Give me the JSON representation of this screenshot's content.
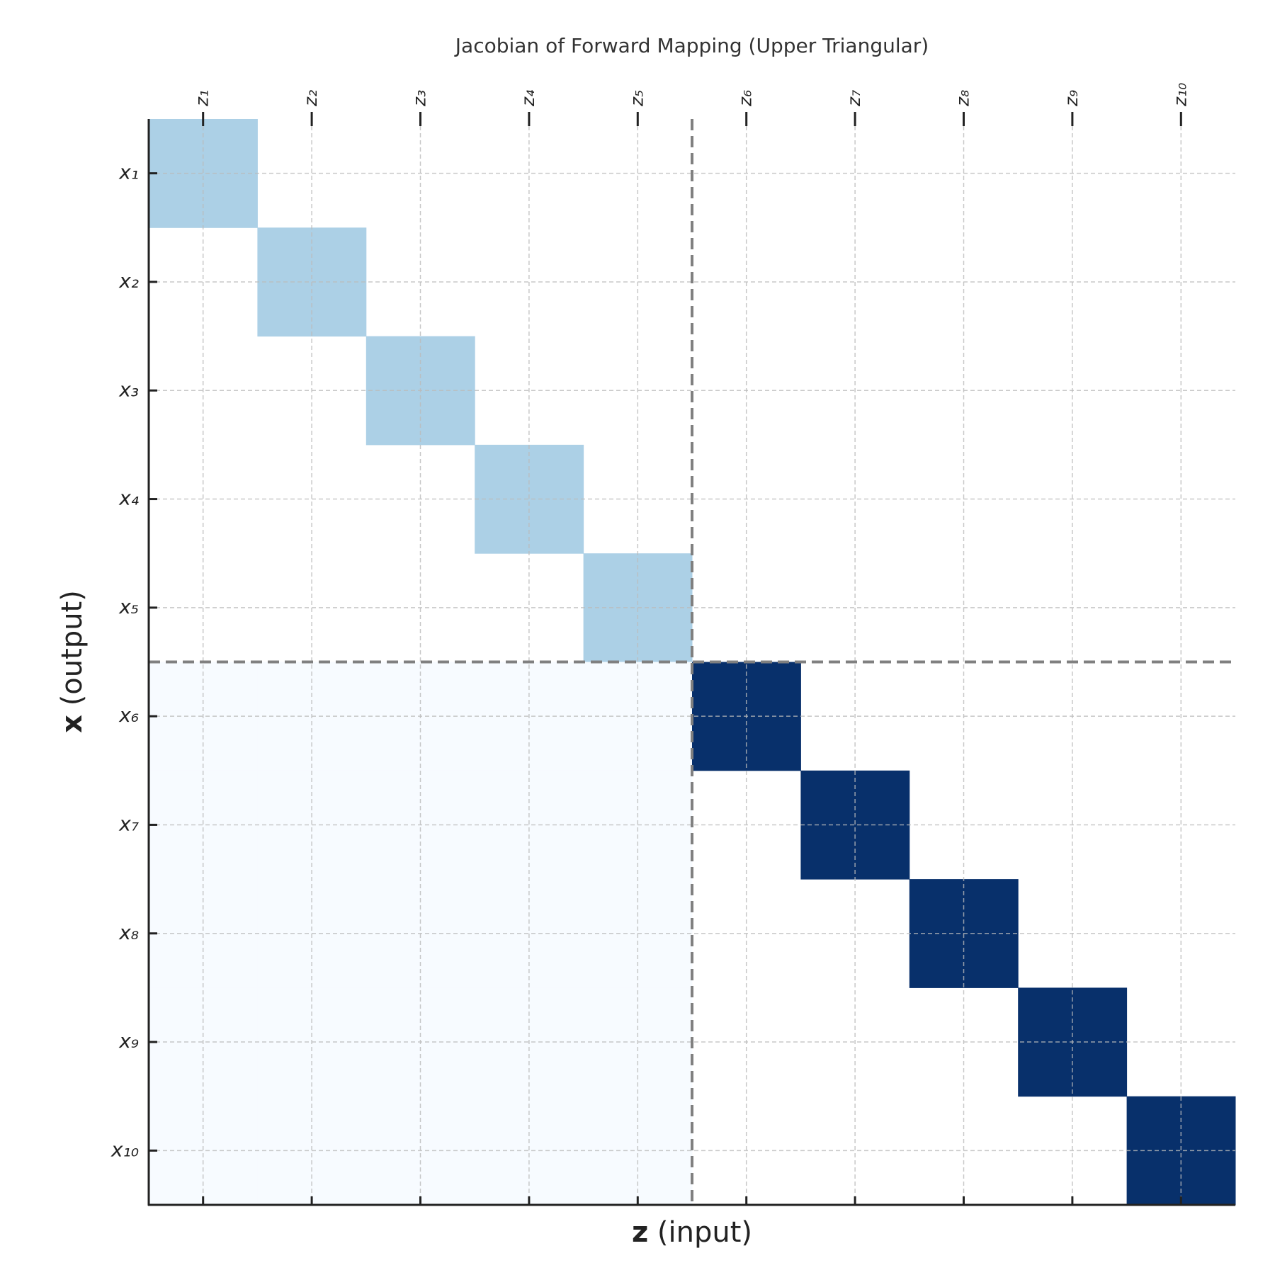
{
  "chart_data": {
    "type": "heatmap",
    "title": "Jacobian of Forward Mapping (Upper Triangular)",
    "xlabel": "z (input)",
    "ylabel": "x (output)",
    "x_categories": [
      "z₁",
      "z₂",
      "z₃",
      "z₄",
      "z₅",
      "z₆",
      "z₇",
      "z₈",
      "z₉",
      "z₁₀"
    ],
    "y_categories": [
      "x₁",
      "x₂",
      "x₃",
      "x₄",
      "x₅",
      "x₆",
      "x₇",
      "x₈",
      "x₉",
      "x₁₀"
    ],
    "values": [
      [
        0.33,
        null,
        null,
        null,
        null,
        null,
        null,
        null,
        null,
        null
      ],
      [
        null,
        0.33,
        null,
        null,
        null,
        null,
        null,
        null,
        null,
        null
      ],
      [
        null,
        null,
        0.33,
        null,
        null,
        null,
        null,
        null,
        null,
        null
      ],
      [
        null,
        null,
        null,
        0.33,
        null,
        null,
        null,
        null,
        null,
        null
      ],
      [
        null,
        null,
        null,
        null,
        0.33,
        null,
        null,
        null,
        null,
        null
      ],
      [
        0,
        0,
        0,
        0,
        0,
        1,
        null,
        null,
        null,
        null
      ],
      [
        0,
        0,
        0,
        0,
        0,
        null,
        1,
        null,
        null,
        null
      ],
      [
        0,
        0,
        0,
        0,
        0,
        null,
        null,
        1,
        null,
        null
      ],
      [
        0,
        0,
        0,
        0,
        0,
        null,
        null,
        null,
        1,
        null
      ],
      [
        0,
        0,
        0,
        0,
        0,
        null,
        null,
        null,
        null,
        1
      ]
    ],
    "colorscale": [
      [
        0,
        "#f7fbff"
      ],
      [
        0.125,
        "#deebf7"
      ],
      [
        0.25,
        "#c6dbef"
      ],
      [
        0.375,
        "#9ecae1"
      ],
      [
        0.5,
        "#6baed6"
      ],
      [
        0.625,
        "#4292c6"
      ],
      [
        0.75,
        "#2171b5"
      ],
      [
        0.875,
        "#08519c"
      ],
      [
        1,
        "#08306b"
      ]
    ],
    "vlim": [
      0,
      1
    ],
    "partition": 5,
    "grid": true
  }
}
